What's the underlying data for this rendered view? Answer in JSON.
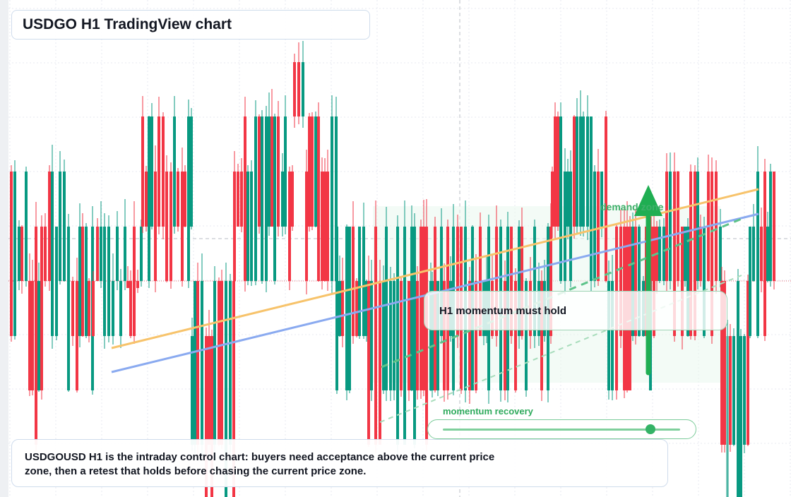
{
  "chart_data": {
    "type": "candlestick",
    "title": "USDGO H1 TradingView chart",
    "symbol": "USDGOUSD",
    "timeframe": "H1",
    "colors": {
      "up": "#089981",
      "down": "#f23645",
      "trend_orange": "#f7c36b",
      "trend_blue": "#8aaaf0",
      "projection_green": "#5ec38a",
      "arrow": "#1fae52"
    },
    "grid": true,
    "levels": [
      "current price zone"
    ],
    "annotations": {
      "demand_zone": "demand zone",
      "note": "H1 momentum must hold",
      "momentum_label": "momentum recovery",
      "momentum_level": 0.87,
      "arrow_direction": "up"
    }
  },
  "caption": {
    "line1": "USDGOUSD H1 is the intraday control chart: buyers need acceptance above the current price",
    "line2": "zone, then a retest that holds before chasing the current price zone."
  }
}
